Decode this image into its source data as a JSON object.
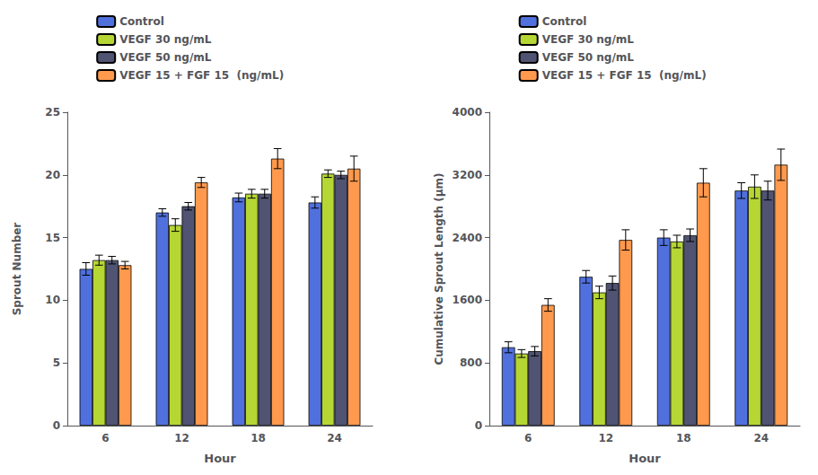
{
  "chart_data": [
    {
      "type": "bar",
      "xlabel": "Hour",
      "ylabel": "Sprout Number",
      "categories": [
        "6",
        "12",
        "18",
        "24"
      ],
      "ylim": [
        0,
        25
      ],
      "yticks": [
        0,
        5,
        10,
        15,
        20,
        25
      ],
      "grid": false,
      "legend": "top",
      "series": [
        {
          "name": "Control",
          "values": [
            12.5,
            17.0,
            18.2,
            17.8
          ],
          "errors": [
            0.5,
            0.3,
            0.35,
            0.45
          ]
        },
        {
          "name": "VEGF 30 ng/mL",
          "values": [
            13.2,
            16.0,
            18.5,
            20.1
          ],
          "errors": [
            0.4,
            0.5,
            0.35,
            0.3
          ]
        },
        {
          "name": "VEGF 50 ng/mL",
          "values": [
            13.2,
            17.5,
            18.5,
            20.0
          ],
          "errors": [
            0.3,
            0.3,
            0.35,
            0.3
          ]
        },
        {
          "name": "VEGF 15 + FGF 15  (ng/mL)",
          "values": [
            12.8,
            19.4,
            21.3,
            20.5
          ],
          "errors": [
            0.3,
            0.4,
            0.8,
            1.0
          ]
        }
      ]
    },
    {
      "type": "bar",
      "xlabel": "Hour",
      "ylabel": "Cumulative Sprout Length (μm)",
      "categories": [
        "6",
        "12",
        "18",
        "24"
      ],
      "ylim": [
        0,
        4000
      ],
      "yticks": [
        0,
        800,
        1600,
        2400,
        3200,
        4000
      ],
      "grid": false,
      "legend": "top",
      "series": [
        {
          "name": "Control",
          "values": [
            1000,
            1900,
            2400,
            3000
          ],
          "errors": [
            70,
            80,
            100,
            100
          ]
        },
        {
          "name": "VEGF 30 ng/mL",
          "values": [
            920,
            1700,
            2350,
            3050
          ],
          "errors": [
            50,
            80,
            80,
            150
          ]
        },
        {
          "name": "VEGF 50 ng/mL",
          "values": [
            950,
            1820,
            2430,
            3000
          ],
          "errors": [
            60,
            90,
            80,
            120
          ]
        },
        {
          "name": "VEGF 15 + FGF 15  (ng/mL)",
          "values": [
            1540,
            2370,
            3100,
            3330
          ],
          "errors": [
            80,
            130,
            180,
            200
          ]
        }
      ]
    }
  ]
}
